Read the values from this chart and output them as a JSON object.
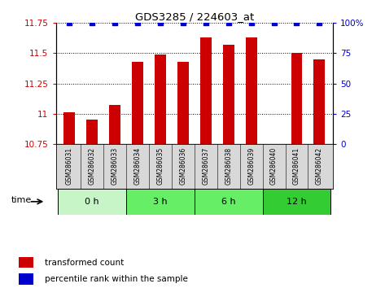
{
  "title": "GDS3285 / 224603_at",
  "samples": [
    "GSM286031",
    "GSM286032",
    "GSM286033",
    "GSM286034",
    "GSM286035",
    "GSM286036",
    "GSM286037",
    "GSM286038",
    "GSM286039",
    "GSM286040",
    "GSM286041",
    "GSM286042"
  ],
  "bar_values": [
    11.01,
    10.95,
    11.07,
    11.43,
    11.49,
    11.43,
    11.63,
    11.57,
    11.63,
    10.75,
    11.5,
    11.45
  ],
  "percentile_values": [
    100,
    100,
    100,
    100,
    100,
    100,
    100,
    100,
    100,
    100,
    100,
    100
  ],
  "bar_color": "#cc0000",
  "percentile_color": "#0000cc",
  "ylim_left": [
    10.75,
    11.75
  ],
  "ylim_right": [
    0,
    100
  ],
  "yticks_left": [
    10.75,
    11.0,
    11.25,
    11.5,
    11.75
  ],
  "ytick_labels_left": [
    "10.75",
    "11",
    "11.25",
    "11.5",
    "11.75"
  ],
  "yticks_right": [
    0,
    25,
    50,
    75,
    100
  ],
  "ytick_labels_right": [
    "0",
    "25",
    "50",
    "75",
    "100%"
  ],
  "groups": [
    {
      "label": "0 h",
      "start": 0,
      "end": 3,
      "color": "#c8f5c8"
    },
    {
      "label": "3 h",
      "start": 3,
      "end": 6,
      "color": "#66ee66"
    },
    {
      "label": "6 h",
      "start": 6,
      "end": 9,
      "color": "#66ee66"
    },
    {
      "label": "12 h",
      "start": 9,
      "end": 12,
      "color": "#33cc33"
    }
  ],
  "time_label": "time",
  "legend_bar_label": "transformed count",
  "legend_pct_label": "percentile rank within the sample",
  "bar_width": 0.5,
  "grid_color": "#000000",
  "bg_color": "#ffffff",
  "tick_label_color_left": "#cc0000",
  "tick_label_color_right": "#0000cc",
  "sample_box_color": "#d8d8d8",
  "n_samples": 12,
  "xlim": [
    -0.6,
    11.6
  ]
}
